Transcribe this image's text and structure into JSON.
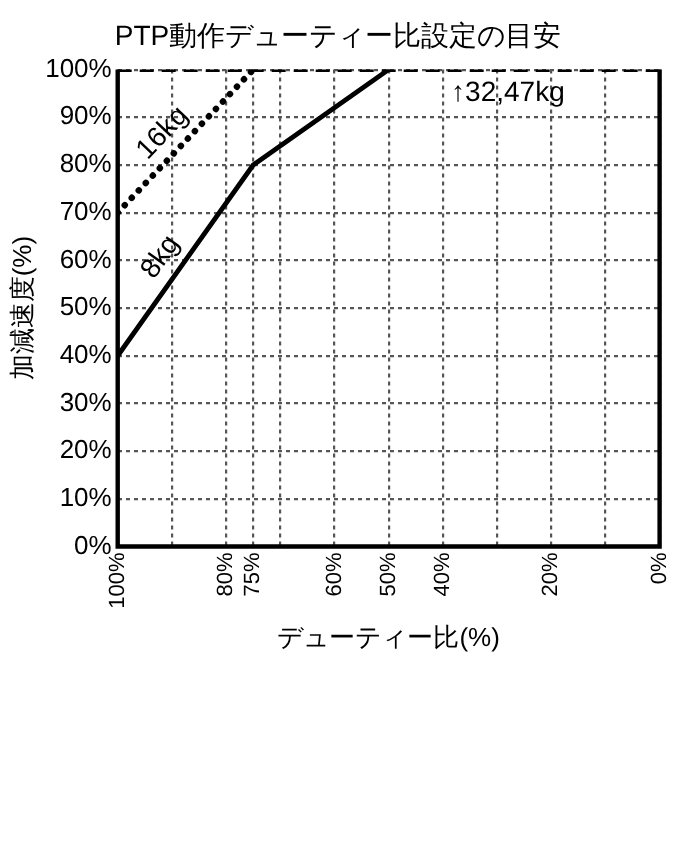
{
  "chart_data": {
    "type": "line",
    "title": "PTP動作デューティー比設定の目安",
    "xlabel": "デューティー比(%)",
    "ylabel": "加減速度(%)",
    "xlim": [
      100,
      0
    ],
    "xticks": [
      {
        "value": 100,
        "label": "100%"
      },
      {
        "value": 90,
        "label": null
      },
      {
        "value": 80,
        "label": "80%"
      },
      {
        "value": 75,
        "label": "75%"
      },
      {
        "value": 70,
        "label": null
      },
      {
        "value": 60,
        "label": "60%"
      },
      {
        "value": 50,
        "label": "50%"
      },
      {
        "value": 40,
        "label": "40%"
      },
      {
        "value": 30,
        "label": null
      },
      {
        "value": 20,
        "label": "20%"
      },
      {
        "value": 10,
        "label": null
      },
      {
        "value": 0,
        "label": "0%"
      }
    ],
    "ylim": [
      0,
      100
    ],
    "yticks": [
      {
        "value": 0,
        "label": "0%"
      },
      {
        "value": 10,
        "label": "10%"
      },
      {
        "value": 20,
        "label": "20%"
      },
      {
        "value": 30,
        "label": "30%"
      },
      {
        "value": 40,
        "label": "40%"
      },
      {
        "value": 50,
        "label": "50%"
      },
      {
        "value": 60,
        "label": "60%"
      },
      {
        "value": 70,
        "label": "70%"
      },
      {
        "value": 80,
        "label": "80%"
      },
      {
        "value": 90,
        "label": "90%"
      },
      {
        "value": 100,
        "label": "100%"
      }
    ],
    "grid": true,
    "legend": false,
    "marker": "none",
    "series": [
      {
        "name": "8kg",
        "color": "#000000",
        "line_style": "solid",
        "x": [
          100,
          75,
          50
        ],
        "values": [
          40,
          80,
          100
        ]
      },
      {
        "name": "16kg",
        "color": "#000000",
        "line_style": "dotted",
        "x": [
          100,
          75
        ],
        "values": [
          70,
          100
        ]
      },
      {
        "color": "#000000",
        "line_style": "dashed",
        "x": [
          100,
          0
        ],
        "values": [
          100,
          100
        ]
      }
    ],
    "annotations": [
      {
        "text": "↑32,47kg",
        "x": 37,
        "y": 100
      }
    ]
  }
}
